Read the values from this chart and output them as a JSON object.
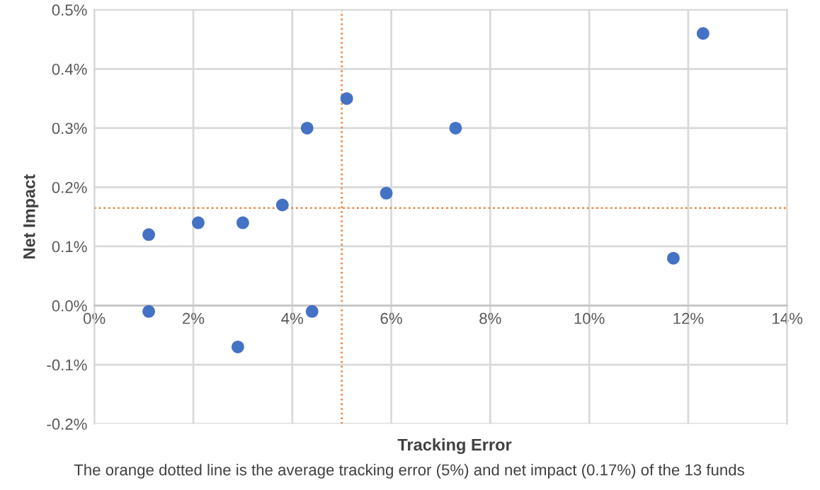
{
  "chart_data": {
    "type": "scatter",
    "xlabel": "Tracking Error",
    "ylabel": "Net Impact",
    "x": [
      1.1,
      2.1,
      3.0,
      3.8,
      4.3,
      5.1,
      5.9,
      1.1,
      2.9,
      4.4,
      7.3,
      11.7,
      12.3
    ],
    "series": [
      {
        "color": "#4472c4",
        "values": [
          0.12,
          0.14,
          0.14,
          0.17,
          0.3,
          0.35,
          0.19,
          -0.01,
          -0.07,
          -0.01,
          0.3,
          0.08,
          0.46
        ]
      }
    ],
    "xlim": [
      0,
      14
    ],
    "xticks": [
      {
        "value": 0,
        "label": "0%"
      },
      {
        "value": 2,
        "label": "2%"
      },
      {
        "value": 4,
        "label": "4%"
      },
      {
        "value": 6,
        "label": "6%"
      },
      {
        "value": 8,
        "label": "8%"
      },
      {
        "value": 10,
        "label": "10%"
      },
      {
        "value": 12,
        "label": "12%"
      },
      {
        "value": 14,
        "label": "14%"
      }
    ],
    "ylim": [
      -0.2,
      0.5
    ],
    "yticks": [
      {
        "value": -0.2,
        "label": "-0.2%"
      },
      {
        "value": -0.1,
        "label": "-0.1%"
      },
      {
        "value": 0,
        "label": "0.0%"
      },
      {
        "value": 0.1,
        "label": "0.1%"
      },
      {
        "value": 0.2,
        "label": "0.2%"
      },
      {
        "value": 0.3,
        "label": "0.3%"
      },
      {
        "value": 0.4,
        "label": "0.4%"
      },
      {
        "value": 0.5,
        "label": "0.5%"
      }
    ],
    "ref_lines": [
      {
        "axis": "x",
        "value": 5,
        "color": "#ed7d31",
        "line_style": "dotted"
      },
      {
        "axis": "y",
        "value": 0.165,
        "color": "#ed7d31",
        "line_style": "dotted"
      }
    ],
    "grid": true,
    "marker": "circle",
    "annotations": [
      "The orange dotted line is the average tracking error (5%) and net impact (0.17%) of the 13 funds"
    ]
  }
}
